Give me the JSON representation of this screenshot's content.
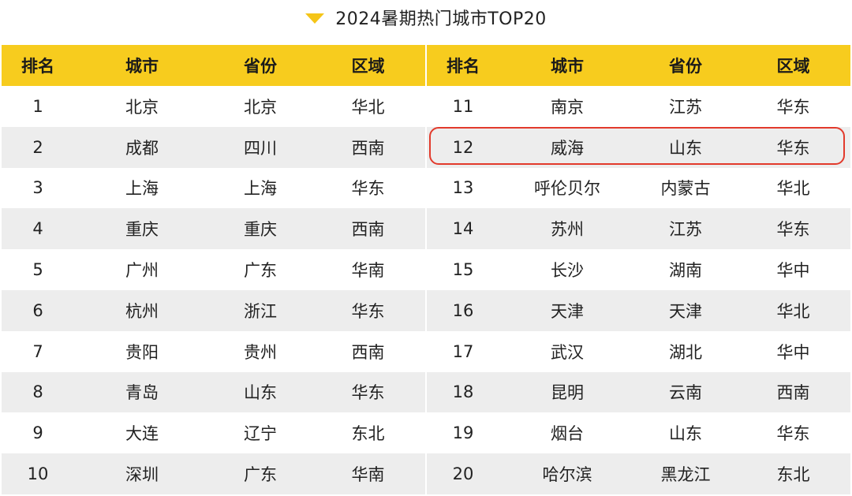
{
  "title": "2024暑期热门城市TOP20",
  "icon": "triangle-down-icon",
  "colors": {
    "header": "#f7cc1e",
    "stripe": "#ededed",
    "highlight": "#e23a2c"
  },
  "headers": {
    "rank": "排名",
    "city": "城市",
    "province": "省份",
    "region": "区域"
  },
  "left_rows": [
    {
      "rank": "1",
      "city": "北京",
      "province": "北京",
      "region": "华北"
    },
    {
      "rank": "2",
      "city": "成都",
      "province": "四川",
      "region": "西南"
    },
    {
      "rank": "3",
      "city": "上海",
      "province": "上海",
      "region": "华东"
    },
    {
      "rank": "4",
      "city": "重庆",
      "province": "重庆",
      "region": "西南"
    },
    {
      "rank": "5",
      "city": "广州",
      "province": "广东",
      "region": "华南"
    },
    {
      "rank": "6",
      "city": "杭州",
      "province": "浙江",
      "region": "华东"
    },
    {
      "rank": "7",
      "city": "贵阳",
      "province": "贵州",
      "region": "西南"
    },
    {
      "rank": "8",
      "city": "青岛",
      "province": "山东",
      "region": "华东"
    },
    {
      "rank": "9",
      "city": "大连",
      "province": "辽宁",
      "region": "东北"
    },
    {
      "rank": "10",
      "city": "深圳",
      "province": "广东",
      "region": "华南"
    }
  ],
  "right_rows": [
    {
      "rank": "11",
      "city": "南京",
      "province": "江苏",
      "region": "华东"
    },
    {
      "rank": "12",
      "city": "威海",
      "province": "山东",
      "region": "华东"
    },
    {
      "rank": "13",
      "city": "呼伦贝尔",
      "province": "内蒙古",
      "region": "华北"
    },
    {
      "rank": "14",
      "city": "苏州",
      "province": "江苏",
      "region": "华东"
    },
    {
      "rank": "15",
      "city": "长沙",
      "province": "湖南",
      "region": "华中"
    },
    {
      "rank": "16",
      "city": "天津",
      "province": "天津",
      "region": "华北"
    },
    {
      "rank": "17",
      "city": "武汉",
      "province": "湖北",
      "region": "华中"
    },
    {
      "rank": "18",
      "city": "昆明",
      "province": "云南",
      "region": "西南"
    },
    {
      "rank": "19",
      "city": "烟台",
      "province": "山东",
      "region": "华东"
    },
    {
      "rank": "20",
      "city": "哈尔滨",
      "province": "黑龙江",
      "region": "东北"
    }
  ],
  "highlighted_rank": "12"
}
